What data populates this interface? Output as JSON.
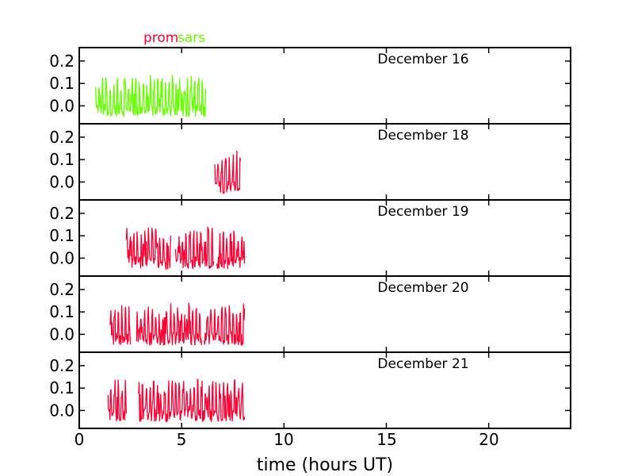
{
  "colors": {
    "prom": "#ff0033",
    "sars": "#66ff00",
    "axes": "#000000"
  },
  "legend": {
    "prom": "prom",
    "sars": "sars"
  },
  "x_axis": {
    "label": "time (hours UT)",
    "ticks": [
      "0",
      "5",
      "10",
      "15",
      "20"
    ]
  },
  "chart_data": {
    "type": "line",
    "xlabel": "time (hours UT)",
    "ylabel": "",
    "xlim": [
      0,
      24
    ],
    "ylim": [
      -0.08,
      0.26
    ],
    "x_ticks": [
      0,
      5,
      10,
      15,
      20
    ],
    "y_ticks": [
      0.0,
      0.1,
      0.2
    ],
    "y_tick_labels": [
      "0.0",
      "0.1",
      "0.2"
    ],
    "legend": [
      "prom",
      "sars"
    ],
    "legend_placement": "top-center",
    "grid": false,
    "panels": [
      {
        "title": "December 16",
        "series": [
          {
            "name": "sars",
            "color": "#66ff00",
            "segments": [
              [
                0.8,
                6.2
              ]
            ]
          }
        ]
      },
      {
        "title": "December 18",
        "series": [
          {
            "name": "prom",
            "color": "#ff0033",
            "segments": [
              [
                6.6,
                7.9
              ]
            ]
          }
        ]
      },
      {
        "title": "December 19",
        "series": [
          {
            "name": "prom",
            "color": "#ff0033",
            "segments": [
              [
                2.3,
                4.5
              ],
              [
                4.7,
                6.6
              ],
              [
                6.7,
                8.1
              ]
            ]
          }
        ]
      },
      {
        "title": "December 20",
        "series": [
          {
            "name": "prom",
            "color": "#ff0033",
            "segments": [
              [
                1.5,
                2.5
              ],
              [
                2.8,
                6.0
              ],
              [
                6.1,
                8.1
              ]
            ]
          }
        ]
      },
      {
        "title": "December 21",
        "series": [
          {
            "name": "prom",
            "color": "#ff0033",
            "segments": [
              [
                1.4,
                2.3
              ],
              [
                2.9,
                8.1
              ]
            ]
          }
        ]
      }
    ]
  }
}
